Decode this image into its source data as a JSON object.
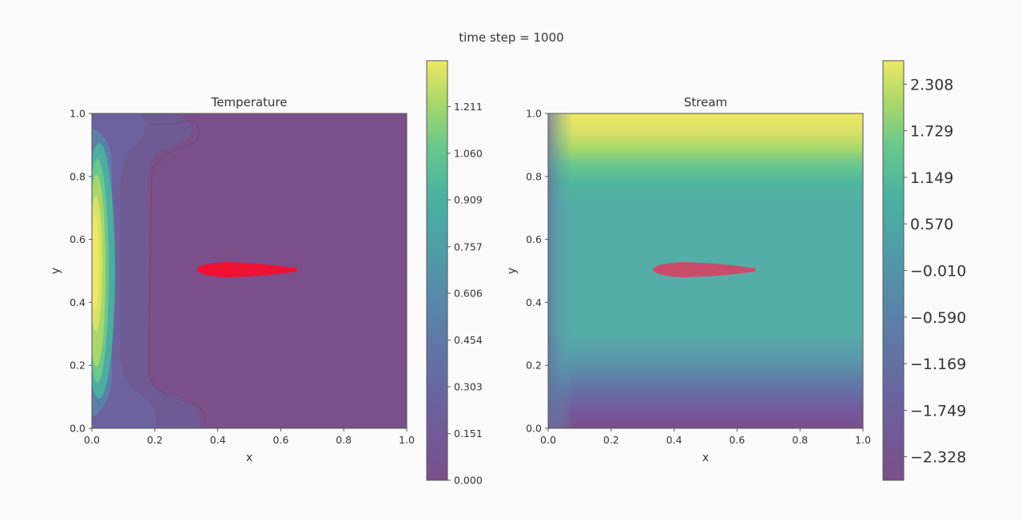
{
  "suptitle": "time step = 1000",
  "colors": {
    "viridis_stops": [
      "#7a4f8a",
      "#6a63a0",
      "#5a83a8",
      "#4f9da8",
      "#4ab3a0",
      "#6bc98c",
      "#a9d86a",
      "#eee866"
    ],
    "obstacle_temperature": "#ee1133",
    "obstacle_stream": "#c94c6a",
    "spine": "#555555"
  },
  "chart_data": [
    {
      "type": "heatmap",
      "title": "Temperature",
      "xlabel": "x",
      "ylabel": "y",
      "xlim": [
        0.0,
        1.0
      ],
      "ylim": [
        0.0,
        1.0
      ],
      "x_ticks": [
        "0.0",
        "0.2",
        "0.4",
        "0.6",
        "0.8",
        "1.0"
      ],
      "y_ticks": [
        "0.0",
        "0.2",
        "0.4",
        "0.6",
        "0.8",
        "1.0"
      ],
      "colorbar_ticks": [
        "0.000",
        "0.151",
        "0.303",
        "0.454",
        "0.606",
        "0.757",
        "0.909",
        "1.060",
        "1.211"
      ],
      "colorbar_range": [
        0.0,
        1.36
      ],
      "obstacle": "airfoil centered near (0.45, 0.5)"
    },
    {
      "type": "heatmap",
      "title": "Stream",
      "xlabel": "x",
      "ylabel": "y",
      "xlim": [
        0.0,
        1.0
      ],
      "ylim": [
        0.0,
        1.0
      ],
      "x_ticks": [
        "0.0",
        "0.2",
        "0.4",
        "0.6",
        "0.8",
        "1.0"
      ],
      "y_ticks": [
        "0.0",
        "0.2",
        "0.4",
        "0.6",
        "0.8",
        "1.0"
      ],
      "colorbar_ticks": [
        "−2.328",
        "−1.749",
        "−1.169",
        "−0.590",
        "−0.010",
        "0.570",
        "1.149",
        "1.729",
        "2.308"
      ],
      "colorbar_range": [
        -2.62,
        2.6
      ],
      "obstacle": "airfoil centered near (0.45, 0.5)"
    }
  ]
}
